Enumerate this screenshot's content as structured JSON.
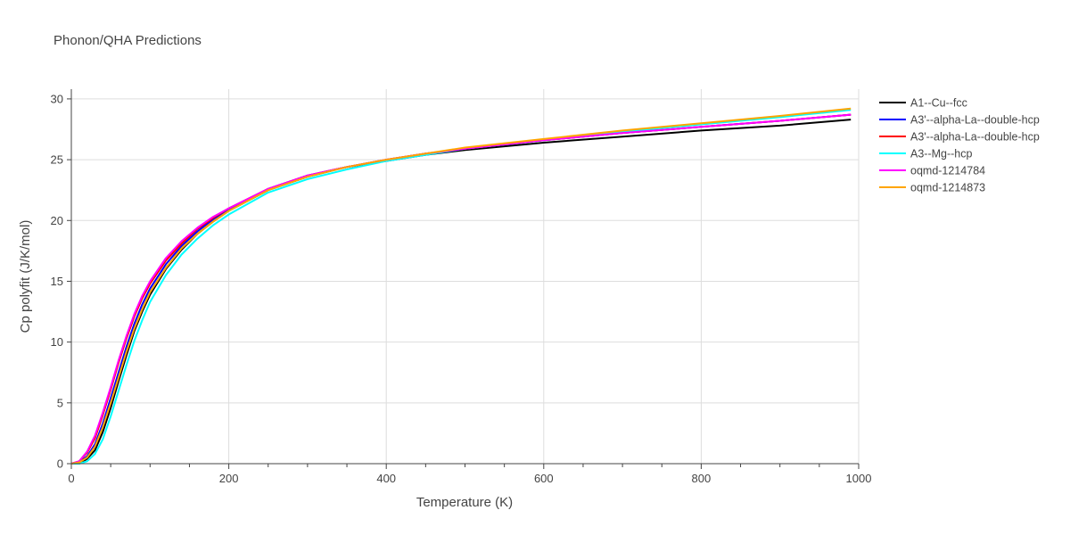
{
  "chart_data": {
    "type": "line",
    "title": "Phonon/QHA Predictions",
    "xlabel": "Temperature (K)",
    "ylabel": "Cp polyfit (J/K/mol)",
    "xlim": [
      0,
      1000
    ],
    "ylim": [
      0,
      30.8
    ],
    "xticks": [
      0,
      200,
      400,
      600,
      800,
      1000
    ],
    "yticks": [
      0,
      5,
      10,
      15,
      20,
      25,
      30
    ],
    "grid": true,
    "legend_position": "top-right",
    "series": [
      {
        "name": "A1--Cu--fcc",
        "color": "#000000",
        "points": [
          [
            0,
            0
          ],
          [
            10,
            0
          ],
          [
            20,
            0.4
          ],
          [
            30,
            1.1
          ],
          [
            40,
            2.6
          ],
          [
            50,
            4.6
          ],
          [
            60,
            6.8
          ],
          [
            70,
            8.9
          ],
          [
            80,
            10.9
          ],
          [
            90,
            12.5
          ],
          [
            100,
            13.9
          ],
          [
            120,
            16.0
          ],
          [
            140,
            17.6
          ],
          [
            160,
            18.9
          ],
          [
            180,
            19.9
          ],
          [
            200,
            20.8
          ],
          [
            250,
            22.5
          ],
          [
            300,
            23.6
          ],
          [
            350,
            24.4
          ],
          [
            400,
            24.9
          ],
          [
            450,
            25.4
          ],
          [
            500,
            25.8
          ],
          [
            600,
            26.4
          ],
          [
            700,
            26.9
          ],
          [
            800,
            27.4
          ],
          [
            900,
            27.8
          ],
          [
            990,
            28.3
          ]
        ]
      },
      {
        "name": "A3'--alpha-La--double-hcp",
        "color": "#0000ff",
        "points": [
          [
            0,
            0
          ],
          [
            10,
            0.1
          ],
          [
            20,
            0.6
          ],
          [
            30,
            1.6
          ],
          [
            40,
            3.3
          ],
          [
            50,
            5.4
          ],
          [
            60,
            7.5
          ],
          [
            70,
            9.6
          ],
          [
            80,
            11.5
          ],
          [
            90,
            13.1
          ],
          [
            100,
            14.4
          ],
          [
            120,
            16.4
          ],
          [
            140,
            17.9
          ],
          [
            160,
            19.1
          ],
          [
            180,
            20.1
          ],
          [
            200,
            20.9
          ],
          [
            250,
            22.6
          ],
          [
            300,
            23.7
          ],
          [
            350,
            24.4
          ],
          [
            400,
            25.0
          ],
          [
            450,
            25.5
          ],
          [
            500,
            25.9
          ],
          [
            600,
            26.6
          ],
          [
            700,
            27.2
          ],
          [
            800,
            27.7
          ],
          [
            900,
            28.2
          ],
          [
            990,
            28.7
          ]
        ]
      },
      {
        "name": "A3'--alpha-La--double-hcp",
        "color": "#ff0000",
        "points": [
          [
            0,
            0
          ],
          [
            10,
            0.2
          ],
          [
            20,
            0.9
          ],
          [
            30,
            2.1
          ],
          [
            40,
            4.0
          ],
          [
            50,
            6.1
          ],
          [
            60,
            8.3
          ],
          [
            70,
            10.3
          ],
          [
            80,
            12.1
          ],
          [
            90,
            13.6
          ],
          [
            100,
            14.8
          ],
          [
            120,
            16.7
          ],
          [
            140,
            18.1
          ],
          [
            160,
            19.3
          ],
          [
            180,
            20.2
          ],
          [
            200,
            21.0
          ],
          [
            250,
            22.6
          ],
          [
            300,
            23.7
          ],
          [
            350,
            24.4
          ],
          [
            400,
            25.0
          ],
          [
            450,
            25.5
          ],
          [
            500,
            25.9
          ],
          [
            600,
            26.6
          ],
          [
            700,
            27.2
          ],
          [
            800,
            27.7
          ],
          [
            900,
            28.2
          ],
          [
            990,
            28.7
          ]
        ]
      },
      {
        "name": "A3--Mg--hcp",
        "color": "#00ffff",
        "points": [
          [
            0,
            0
          ],
          [
            10,
            0
          ],
          [
            20,
            0.2
          ],
          [
            30,
            0.8
          ],
          [
            40,
            2.0
          ],
          [
            50,
            3.9
          ],
          [
            60,
            6.0
          ],
          [
            70,
            8.1
          ],
          [
            80,
            10.1
          ],
          [
            90,
            11.8
          ],
          [
            100,
            13.3
          ],
          [
            120,
            15.5
          ],
          [
            140,
            17.2
          ],
          [
            160,
            18.5
          ],
          [
            180,
            19.6
          ],
          [
            200,
            20.5
          ],
          [
            250,
            22.3
          ],
          [
            300,
            23.4
          ],
          [
            350,
            24.2
          ],
          [
            400,
            24.9
          ],
          [
            450,
            25.4
          ],
          [
            500,
            25.9
          ],
          [
            600,
            26.6
          ],
          [
            700,
            27.3
          ],
          [
            800,
            27.9
          ],
          [
            900,
            28.5
          ],
          [
            990,
            29.1
          ]
        ]
      },
      {
        "name": "oqmd-1214784",
        "color": "#ff00ff",
        "points": [
          [
            0,
            0
          ],
          [
            10,
            0.2
          ],
          [
            20,
            1.0
          ],
          [
            30,
            2.3
          ],
          [
            40,
            4.2
          ],
          [
            50,
            6.3
          ],
          [
            60,
            8.5
          ],
          [
            70,
            10.5
          ],
          [
            80,
            12.3
          ],
          [
            90,
            13.8
          ],
          [
            100,
            15.0
          ],
          [
            120,
            16.9
          ],
          [
            140,
            18.3
          ],
          [
            160,
            19.4
          ],
          [
            180,
            20.3
          ],
          [
            200,
            21.0
          ],
          [
            250,
            22.6
          ],
          [
            300,
            23.7
          ],
          [
            350,
            24.4
          ],
          [
            400,
            25.0
          ],
          [
            450,
            25.5
          ],
          [
            500,
            25.9
          ],
          [
            600,
            26.6
          ],
          [
            700,
            27.2
          ],
          [
            800,
            27.7
          ],
          [
            900,
            28.2
          ],
          [
            990,
            28.7
          ]
        ]
      },
      {
        "name": "oqmd-1214873",
        "color": "#ffa500",
        "points": [
          [
            0,
            0
          ],
          [
            10,
            0.1
          ],
          [
            20,
            0.5
          ],
          [
            30,
            1.4
          ],
          [
            40,
            3.0
          ],
          [
            50,
            5.0
          ],
          [
            60,
            7.1
          ],
          [
            70,
            9.2
          ],
          [
            80,
            11.1
          ],
          [
            90,
            12.7
          ],
          [
            100,
            14.1
          ],
          [
            120,
            16.1
          ],
          [
            140,
            17.7
          ],
          [
            160,
            18.9
          ],
          [
            180,
            19.9
          ],
          [
            200,
            20.8
          ],
          [
            250,
            22.5
          ],
          [
            300,
            23.6
          ],
          [
            350,
            24.4
          ],
          [
            400,
            25.0
          ],
          [
            450,
            25.5
          ],
          [
            500,
            26.0
          ],
          [
            600,
            26.7
          ],
          [
            700,
            27.4
          ],
          [
            800,
            28.0
          ],
          [
            900,
            28.6
          ],
          [
            990,
            29.2
          ]
        ]
      }
    ]
  }
}
